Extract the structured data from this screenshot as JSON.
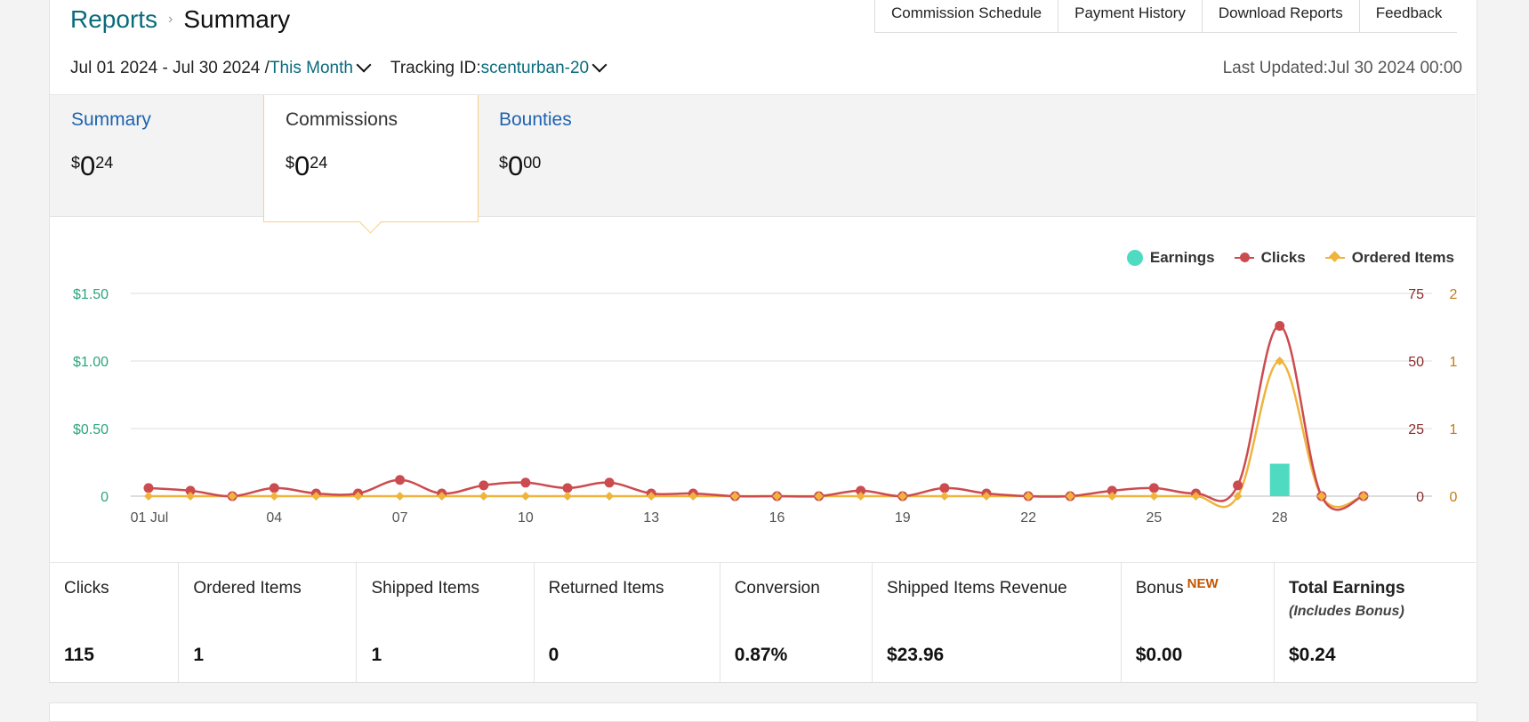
{
  "breadcrumb": {
    "parent": "Reports",
    "current": "Summary"
  },
  "toplinks": [
    "Commission Schedule",
    "Payment History",
    "Download Reports",
    "Feedback"
  ],
  "filters": {
    "date_range": "Jul 01 2024 - Jul 30 2024 /",
    "period": "This Month",
    "tracking_label": "Tracking ID:",
    "tracking_id": "scenturban-20",
    "last_updated": "Last Updated:Jul 30 2024 00:00"
  },
  "tabs": [
    {
      "label": "Summary",
      "currency": "$",
      "whole": "0",
      "cents": "24"
    },
    {
      "label": "Commissions",
      "currency": "$",
      "whole": "0",
      "cents": "24"
    },
    {
      "label": "Bounties",
      "currency": "$",
      "whole": "0",
      "cents": "00"
    }
  ],
  "colors": {
    "earnings": "#4fdbc2",
    "clicks": "#cc4b4f",
    "ordered": "#f0b43c",
    "teal_axis": "#2aa57f",
    "clicks_axis": "#8b2a2a",
    "ordered_axis": "#c47a12"
  },
  "chart_data": {
    "type": "line",
    "legend": [
      "Earnings",
      "Clicks",
      "Ordered Items"
    ],
    "legend_position": "top-right",
    "x_tick_labels": [
      "01 Jul",
      "04",
      "07",
      "10",
      "13",
      "16",
      "19",
      "22",
      "25",
      "28"
    ],
    "x": [
      1,
      2,
      3,
      4,
      5,
      6,
      7,
      8,
      9,
      10,
      11,
      12,
      13,
      14,
      15,
      16,
      17,
      18,
      19,
      20,
      21,
      22,
      23,
      24,
      25,
      26,
      27,
      28,
      29,
      30
    ],
    "y_left_ticks": [
      "0",
      "$0.50",
      "$1.00",
      "$1.50"
    ],
    "y_left_range": [
      0,
      1.5
    ],
    "y_right1_ticks": [
      "0",
      "25",
      "50",
      "75"
    ],
    "y_right1_range": [
      0,
      75
    ],
    "y_right2_ticks": [
      "0",
      "1",
      "1",
      "2"
    ],
    "y_right2_range": [
      0,
      1.5
    ],
    "grid": true,
    "series": [
      {
        "name": "Earnings",
        "kind": "bar",
        "axis": "left",
        "values": [
          0,
          0,
          0,
          0,
          0,
          0,
          0,
          0,
          0,
          0,
          0,
          0,
          0,
          0,
          0,
          0,
          0,
          0,
          0,
          0,
          0,
          0,
          0,
          0,
          0,
          0,
          0,
          0.24,
          0,
          0
        ]
      },
      {
        "name": "Clicks",
        "kind": "line",
        "axis": "right1",
        "values": [
          3,
          2,
          0,
          3,
          1,
          1,
          6,
          1,
          4,
          5,
          3,
          5,
          1,
          1,
          0,
          0,
          0,
          2,
          0,
          3,
          1,
          0,
          0,
          2,
          3,
          1,
          4,
          63,
          0,
          0
        ]
      },
      {
        "name": "Ordered Items",
        "kind": "line",
        "axis": "right2",
        "values": [
          0,
          0,
          0,
          0,
          0,
          0,
          0,
          0,
          0,
          0,
          0,
          0,
          0,
          0,
          0,
          0,
          0,
          0,
          0,
          0,
          0,
          0,
          0,
          0,
          0,
          0,
          0,
          1,
          0,
          0
        ]
      }
    ]
  },
  "stats": [
    {
      "label": "Clicks",
      "value": "115"
    },
    {
      "label": "Ordered Items",
      "value": "1"
    },
    {
      "label": "Shipped Items",
      "value": "1"
    },
    {
      "label": "Returned Items",
      "value": "0"
    },
    {
      "label": "Conversion",
      "value": "0.87%"
    },
    {
      "label": "Shipped Items Revenue",
      "value": "$23.96"
    },
    {
      "label": "Bonus",
      "badge": "NEW",
      "value": "$0.00"
    },
    {
      "label": "Total Earnings",
      "sub": "(Includes Bonus)",
      "value": "$0.24"
    }
  ]
}
